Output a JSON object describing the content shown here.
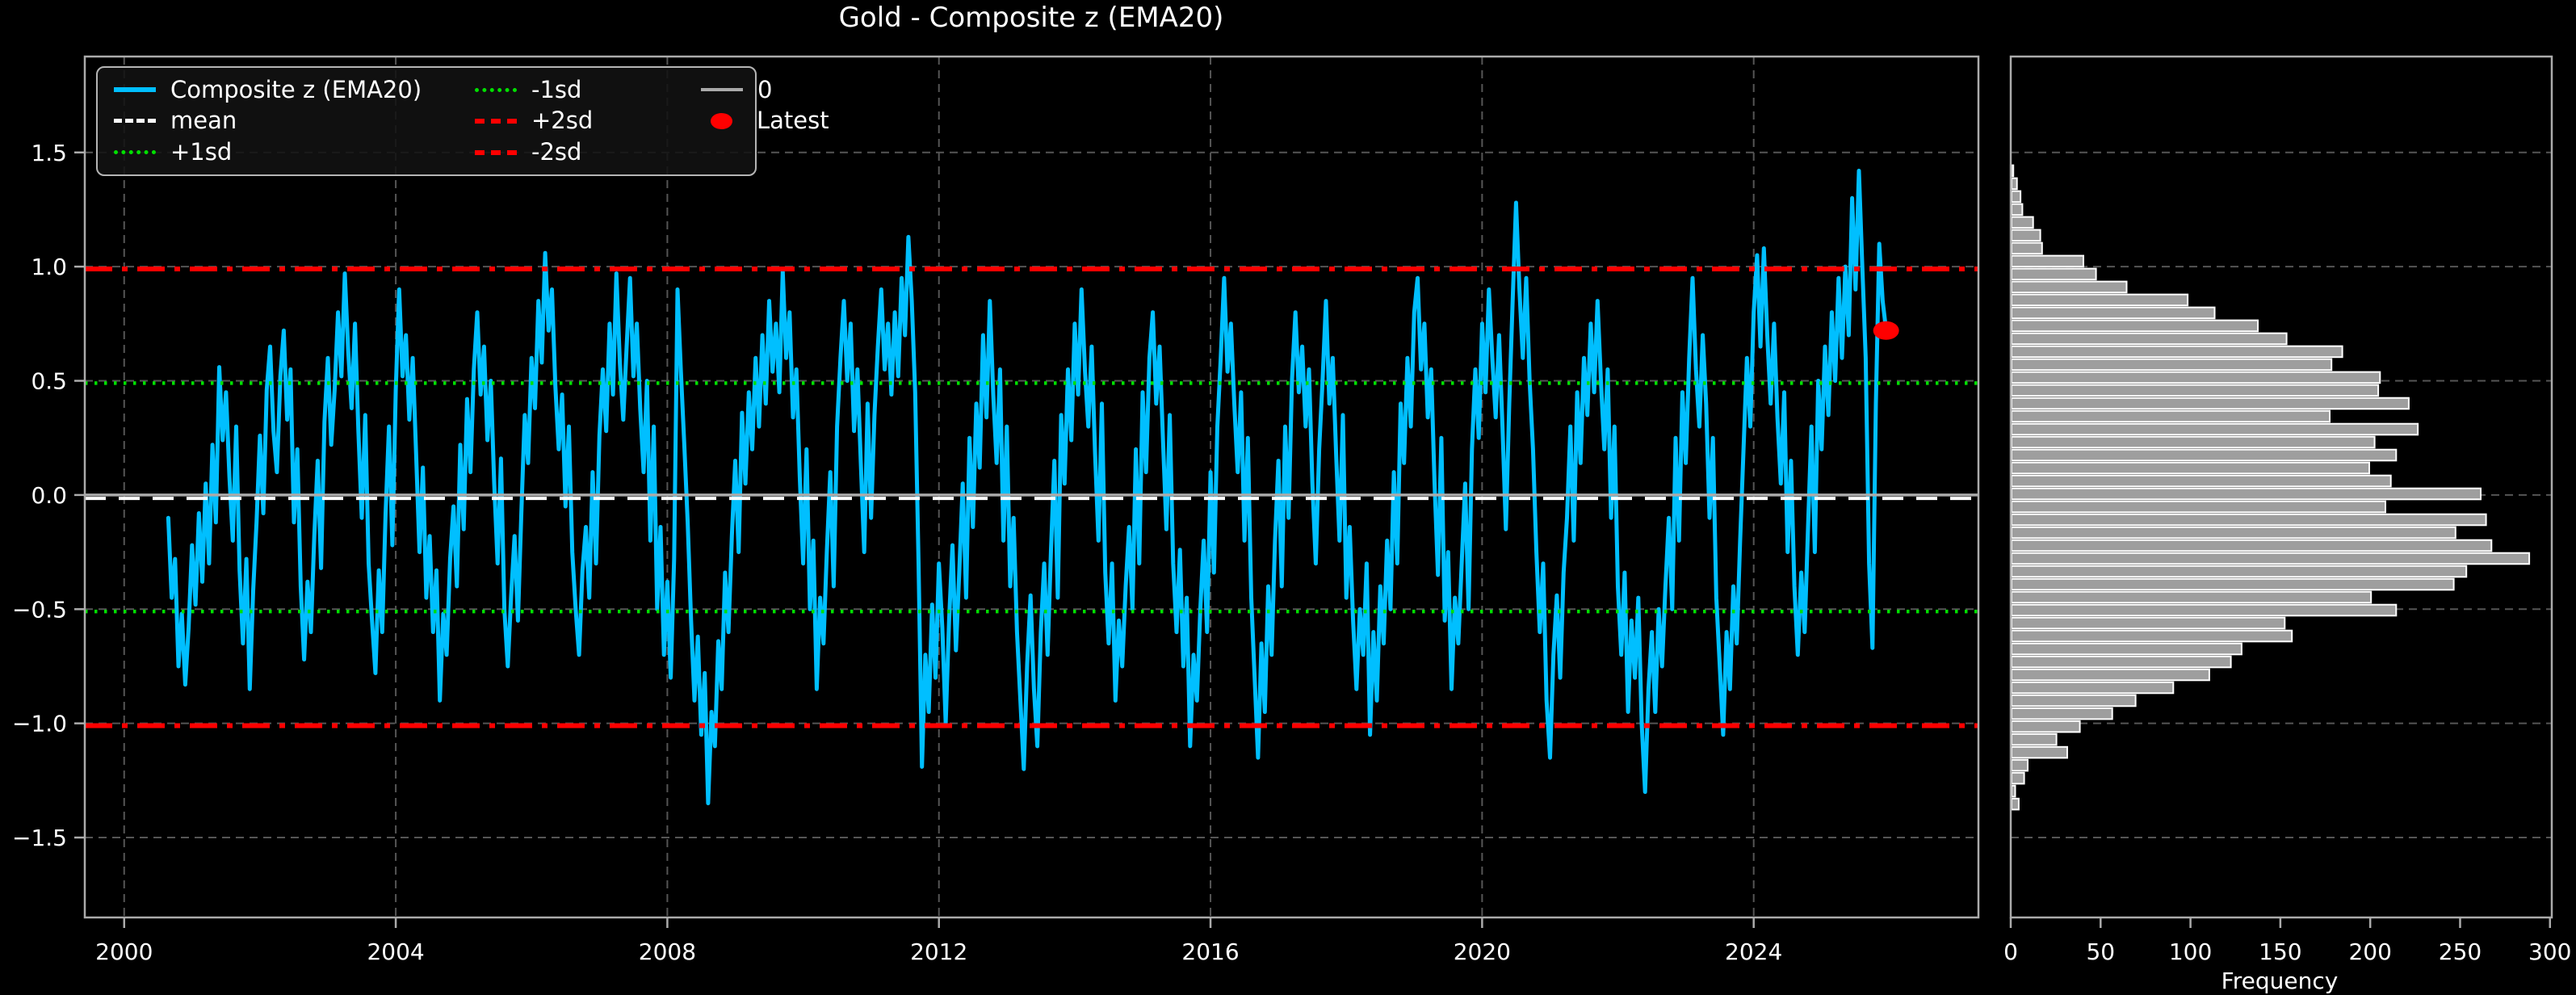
{
  "title": "Gold - Composite z (EMA20)",
  "colors": {
    "background": "#000000",
    "series": "#00BFFF",
    "mean": "#FFFFFF",
    "sd1": "#00E000",
    "sd2": "#FF0000",
    "zero_line": "#AAAAAA",
    "grid": "#555555",
    "spine": "#ABABAB",
    "bar_fill": "#9E9E9E",
    "bar_edge": "#FFFFFF",
    "latest_dot": "#FF0000",
    "text": "#FFFFFF"
  },
  "legend": {
    "items": [
      {
        "label": "Composite z (EMA20)",
        "color": "#00BFFF",
        "style": "solid",
        "weight": 6
      },
      {
        "label": "mean",
        "color": "#FFFFFF",
        "style": "dashed",
        "weight": 5
      },
      {
        "label": "+1sd",
        "color": "#00E000",
        "style": "dotted",
        "weight": 5
      },
      {
        "label": "-1sd",
        "color": "#00E000",
        "style": "dotted",
        "weight": 5
      },
      {
        "label": "+2sd",
        "color": "#FF0000",
        "style": "dashdot",
        "weight": 6
      },
      {
        "label": "-2sd",
        "color": "#FF0000",
        "style": "dashdot",
        "weight": 6
      },
      {
        "label": "0",
        "color": "#AAAAAA",
        "style": "solid",
        "weight": 4
      },
      {
        "label": "Latest",
        "color": "#FF0000",
        "style": "marker",
        "weight": 0
      }
    ]
  },
  "chart_data": [
    {
      "type": "line",
      "title": "Gold - Composite z (EMA20)",
      "xlabel": "",
      "ylabel": "",
      "xlim": [
        1999.42,
        2027.31
      ],
      "ylim": [
        -1.85,
        1.92
      ],
      "grid": true,
      "legend_position": "upper-left",
      "xticks": {
        "values": [
          2000,
          2004,
          2008,
          2012,
          2016,
          2020,
          2024
        ],
        "labels": [
          "2000",
          "2004",
          "2008",
          "2012",
          "2016",
          "2020",
          "2024"
        ]
      },
      "yticks": {
        "values": [
          1.5,
          1.0,
          0.5,
          0.0,
          -0.5,
          -1.0,
          -1.5
        ],
        "labels": [
          "1.5",
          "1.0",
          "0.5",
          "0.0",
          "−0.5",
          "−1.0",
          "−1.5"
        ]
      },
      "ref_lines": [
        {
          "name": "0",
          "value": 0.0,
          "color": "#AAAAAA",
          "style": "solid",
          "width": 3.5
        },
        {
          "name": "mean",
          "value": -0.015,
          "color": "#FFFFFF",
          "style": "dashed",
          "width": 4
        },
        {
          "name": "+1sd",
          "value": 0.49,
          "color": "#00E000",
          "style": "dotted",
          "width": 4.5
        },
        {
          "name": "-1sd",
          "value": -0.51,
          "color": "#00E000",
          "style": "dotted",
          "width": 4.5
        },
        {
          "name": "+2sd",
          "value": 0.99,
          "color": "#FF0000",
          "style": "dashdot",
          "width": 6
        },
        {
          "name": "-2sd",
          "value": -1.01,
          "color": "#FF0000",
          "style": "dashdot",
          "width": 6
        }
      ],
      "latest": {
        "x": 2025.95,
        "y": 0.72,
        "color": "#FF0000"
      },
      "series": [
        {
          "name": "Composite z (EMA20)",
          "color": "#00BFFF",
          "width": 5,
          "x_start": 2000.65,
          "x_step": 0.05,
          "values": [
            -0.1,
            -0.45,
            -0.28,
            -0.75,
            -0.52,
            -0.83,
            -0.58,
            -0.22,
            -0.48,
            -0.08,
            -0.38,
            0.05,
            -0.3,
            0.22,
            -0.12,
            0.56,
            0.24,
            0.45,
            0.08,
            -0.2,
            0.3,
            -0.33,
            -0.65,
            -0.28,
            -0.85,
            -0.42,
            -0.12,
            0.26,
            -0.08,
            0.46,
            0.65,
            0.28,
            0.1,
            0.52,
            0.72,
            0.33,
            0.55,
            -0.12,
            0.2,
            -0.4,
            -0.72,
            -0.38,
            -0.6,
            -0.18,
            0.15,
            -0.32,
            0.32,
            0.6,
            0.22,
            0.46,
            0.8,
            0.52,
            0.97,
            0.63,
            0.38,
            0.75,
            0.28,
            -0.1,
            0.35,
            -0.3,
            -0.55,
            -0.78,
            -0.33,
            -0.6,
            -0.08,
            0.3,
            -0.22,
            0.46,
            0.9,
            0.52,
            0.7,
            0.33,
            0.6,
            0.18,
            -0.25,
            0.12,
            -0.45,
            -0.18,
            -0.6,
            -0.33,
            -0.9,
            -0.52,
            -0.7,
            -0.28,
            -0.05,
            -0.4,
            0.22,
            -0.15,
            0.42,
            0.1,
            0.55,
            0.8,
            0.44,
            0.65,
            0.24,
            0.5,
            0.05,
            -0.3,
            0.16,
            -0.5,
            -0.75,
            -0.44,
            -0.18,
            -0.55,
            -0.08,
            0.35,
            0.14,
            0.6,
            0.38,
            0.85,
            0.58,
            1.06,
            0.72,
            0.9,
            0.48,
            0.2,
            0.44,
            -0.05,
            0.3,
            -0.25,
            -0.5,
            -0.7,
            -0.33,
            -0.14,
            -0.45,
            0.1,
            -0.3,
            0.26,
            0.55,
            0.28,
            0.75,
            0.44,
            0.97,
            0.58,
            0.33,
            0.65,
            0.95,
            0.52,
            0.75,
            0.38,
            0.1,
            0.5,
            -0.2,
            0.3,
            -0.5,
            -0.14,
            -0.7,
            -0.38,
            -0.8,
            -0.28,
            0.9,
            0.54,
            0.22,
            -0.12,
            -0.55,
            -0.9,
            -0.62,
            -1.05,
            -0.78,
            -1.35,
            -0.95,
            -1.1,
            -0.64,
            -0.85,
            -0.34,
            -0.6,
            -0.18,
            0.15,
            -0.25,
            0.36,
            0.05,
            0.45,
            0.2,
            0.6,
            0.3,
            0.7,
            0.4,
            0.85,
            0.54,
            0.75,
            0.45,
            0.98,
            0.6,
            0.8,
            0.34,
            0.55,
            0.08,
            -0.3,
            0.2,
            -0.5,
            -0.2,
            -0.85,
            -0.45,
            -0.65,
            -0.24,
            0.1,
            -0.4,
            0.3,
            0.6,
            0.85,
            0.5,
            0.75,
            0.28,
            0.55,
            0.14,
            -0.25,
            0.4,
            -0.1,
            0.35,
            0.65,
            0.9,
            0.55,
            0.75,
            0.44,
            0.8,
            0.52,
            0.95,
            0.7,
            1.13,
            0.85,
            0.45,
            -0.3,
            -1.19,
            -0.7,
            -0.95,
            -0.48,
            -0.8,
            -0.3,
            -0.58,
            -1.0,
            -0.55,
            -0.22,
            -0.68,
            -0.33,
            0.05,
            -0.45,
            0.25,
            -0.14,
            0.4,
            0.12,
            0.7,
            0.34,
            0.85,
            0.44,
            0.14,
            0.55,
            -0.2,
            0.3,
            -0.4,
            -0.1,
            -0.6,
            -0.9,
            -1.2,
            -0.74,
            -0.44,
            -0.85,
            -1.1,
            -0.6,
            -0.3,
            -0.7,
            -0.24,
            0.15,
            -0.45,
            0.35,
            0.05,
            0.55,
            0.24,
            0.75,
            0.44,
            0.9,
            0.55,
            0.3,
            0.65,
            0.18,
            -0.2,
            0.4,
            -0.34,
            -0.65,
            -0.3,
            -0.9,
            -0.55,
            -0.75,
            -0.4,
            -0.14,
            -0.5,
            0.2,
            -0.3,
            0.45,
            0.1,
            0.6,
            0.8,
            0.4,
            0.65,
            0.24,
            -0.15,
            0.35,
            -0.3,
            -0.6,
            -0.24,
            -0.75,
            -0.45,
            -1.1,
            -0.7,
            -0.9,
            -0.5,
            -0.2,
            -0.6,
            0.1,
            -0.34,
            0.3,
            0.6,
            0.95,
            0.54,
            0.75,
            0.4,
            0.1,
            0.45,
            -0.2,
            0.25,
            -0.45,
            -0.8,
            -1.15,
            -0.65,
            -0.95,
            -0.4,
            -0.7,
            -0.2,
            0.15,
            -0.4,
            0.3,
            -0.1,
            0.5,
            0.8,
            0.45,
            0.65,
            0.3,
            0.55,
            0.05,
            -0.3,
            0.2,
            0.5,
            0.85,
            0.4,
            0.6,
            0.18,
            -0.2,
            0.35,
            -0.45,
            -0.14,
            -0.55,
            -0.85,
            -0.5,
            -0.7,
            -0.3,
            -1.05,
            -0.6,
            -0.9,
            -0.4,
            -0.65,
            -0.2,
            -0.5,
            0.1,
            -0.3,
            0.4,
            0.14,
            0.6,
            0.3,
            0.8,
            0.95,
            0.55,
            0.75,
            0.34,
            0.55,
            0.05,
            -0.35,
            0.25,
            -0.55,
            -0.25,
            -0.85,
            -0.45,
            -0.65,
            -0.3,
            0.05,
            -0.5,
            0.2,
            0.55,
            0.25,
            0.75,
            0.45,
            0.9,
            0.6,
            0.34,
            0.7,
            0.3,
            -0.15,
            0.4,
            0.85,
            1.28,
            0.9,
            0.6,
            0.95,
            0.5,
            0.2,
            -0.25,
            -0.6,
            -0.3,
            -0.9,
            -1.15,
            -0.7,
            -0.44,
            -0.8,
            -0.34,
            -0.1,
            0.3,
            -0.2,
            0.45,
            0.14,
            0.6,
            0.35,
            0.75,
            0.45,
            0.85,
            0.5,
            0.2,
            0.55,
            -0.1,
            0.3,
            -0.4,
            -0.7,
            -0.34,
            -0.95,
            -0.55,
            -0.8,
            -0.45,
            -1.0,
            -1.3,
            -0.85,
            -0.6,
            -0.95,
            -0.5,
            -0.75,
            -0.4,
            -0.1,
            -0.5,
            0.25,
            -0.2,
            0.45,
            0.14,
            0.6,
            0.95,
            0.55,
            0.3,
            0.7,
            0.4,
            -0.1,
            0.25,
            -0.45,
            -0.75,
            -1.05,
            -0.6,
            -0.85,
            -0.4,
            -0.65,
            -0.2,
            0.2,
            0.6,
            0.3,
            0.8,
            1.05,
            0.65,
            1.08,
            0.7,
            0.4,
            0.75,
            0.34,
            0.05,
            0.45,
            -0.25,
            0.15,
            -0.4,
            -0.7,
            -0.34,
            -0.6,
            -0.14,
            0.3,
            -0.25,
            0.5,
            0.2,
            0.65,
            0.35,
            0.8,
            0.5,
            0.95,
            0.6,
            1.0,
            0.7,
            1.3,
            0.9,
            1.42,
            1.0,
            0.6,
            -0.3,
            -0.67,
            0.4,
            1.1,
            0.85,
            0.72
          ]
        }
      ]
    },
    {
      "type": "bar",
      "orientation": "horizontal",
      "xlabel": "Frequency",
      "ylabel": "",
      "xlim": [
        0,
        301
      ],
      "ylim": [
        -1.85,
        1.92
      ],
      "grid": "horizontal",
      "xticks": {
        "values": [
          0,
          50,
          100,
          150,
          200,
          250,
          300
        ],
        "labels": [
          "0",
          "50",
          "100",
          "150",
          "200",
          "250",
          "300"
        ]
      },
      "bar_color": "#9E9E9E",
      "bar_edge": "#FFFFFF",
      "bins": {
        "z_top_center": 1.42,
        "z_step": 0.0566,
        "frequencies": [
          1,
          3,
          5,
          6,
          12,
          16,
          17,
          40,
          47,
          64,
          98,
          113,
          137,
          153,
          184,
          178,
          205,
          204,
          221,
          177,
          226,
          202,
          214,
          199,
          211,
          261,
          208,
          264,
          247,
          267,
          288,
          253,
          246,
          200,
          214,
          152,
          156,
          128,
          122,
          110,
          90,
          69,
          56,
          38,
          25,
          31,
          9,
          7,
          2,
          4
        ]
      }
    }
  ]
}
